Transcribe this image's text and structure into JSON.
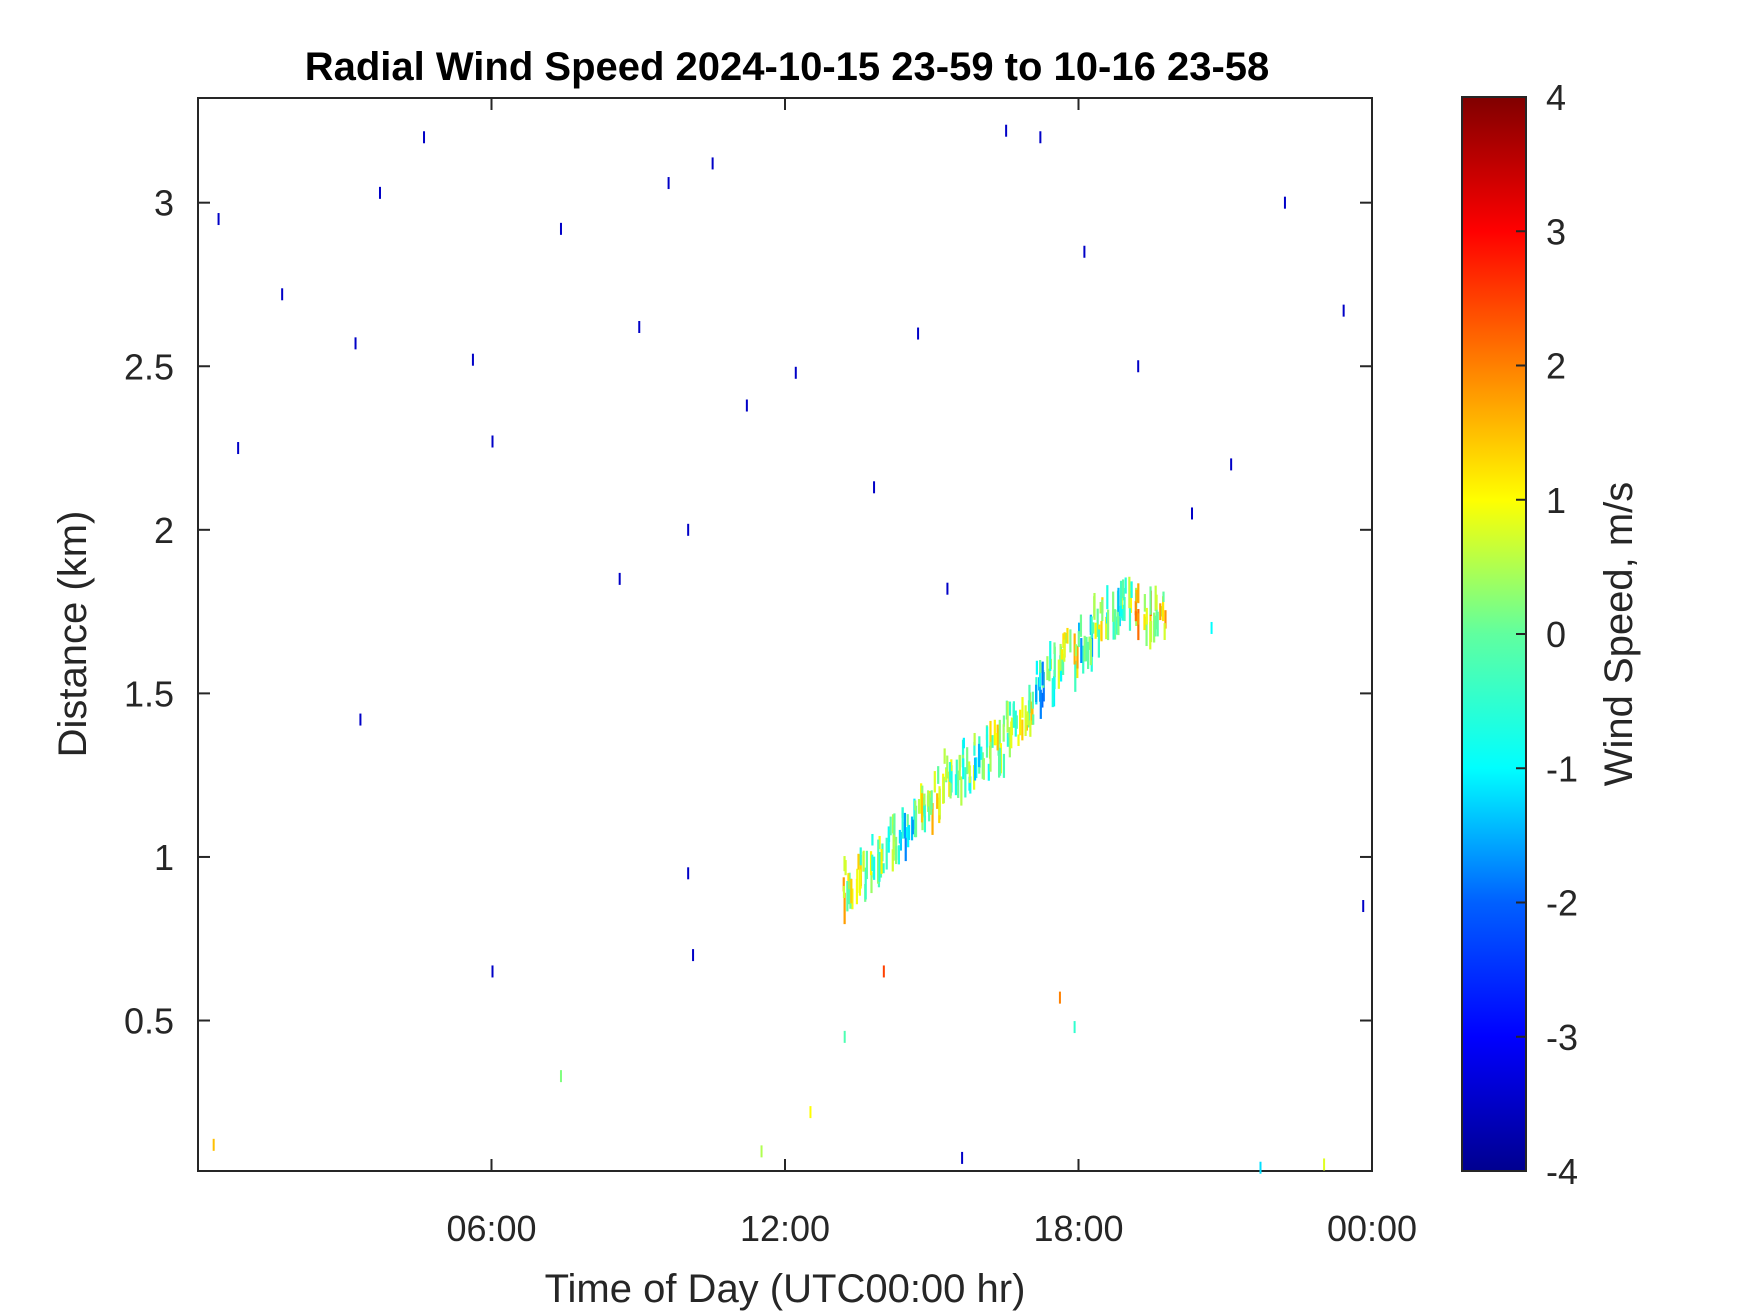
{
  "chart_data": {
    "type": "heatmap",
    "title": "Radial Wind Speed 2024-10-15 23-59 to 10-16 23-58",
    "xlabel": "Time of Day (UTC00:00 hr)",
    "ylabel": "Distance (km)",
    "x_unit": "hours of day (UTC)",
    "xlim": [
      0,
      24
    ],
    "ylim": [
      0.04,
      3.32
    ],
    "x_ticks": [
      6,
      12,
      18,
      24
    ],
    "x_tick_labels": [
      "06:00",
      "12:00",
      "18:00",
      "00:00"
    ],
    "y_ticks": [
      0.5,
      1,
      1.5,
      2,
      2.5,
      3
    ],
    "y_tick_labels": [
      "0.5",
      "1",
      "1.5",
      "2",
      "2.5",
      "3"
    ],
    "colorbar": {
      "label": "Wind Speed, m/s",
      "colormap": "jet",
      "clim": [
        -4,
        4
      ],
      "ticks": [
        -4,
        -3,
        -2,
        -1,
        0,
        1,
        2,
        3,
        4
      ],
      "tick_labels": [
        "-4",
        "-3",
        "-2",
        "-1",
        "0",
        "1",
        "2",
        "3",
        "4"
      ]
    },
    "grid": false,
    "band": {
      "description": "main cluster of returns",
      "points": [
        {
          "t": 13.3,
          "d": 0.92,
          "v": 0.8
        },
        {
          "t": 13.6,
          "d": 0.95,
          "v": 0.5
        },
        {
          "t": 13.9,
          "d": 1.0,
          "v": 0.2
        },
        {
          "t": 14.2,
          "d": 1.05,
          "v": -0.3
        },
        {
          "t": 14.5,
          "d": 1.1,
          "v": -0.8
        },
        {
          "t": 14.8,
          "d": 1.15,
          "v": 0.4
        },
        {
          "t": 15.1,
          "d": 1.2,
          "v": 0.9
        },
        {
          "t": 15.4,
          "d": 1.25,
          "v": 0.3
        },
        {
          "t": 15.7,
          "d": 1.28,
          "v": 0.0
        },
        {
          "t": 16.0,
          "d": 1.32,
          "v": -0.5
        },
        {
          "t": 16.3,
          "d": 1.35,
          "v": 0.6
        },
        {
          "t": 16.6,
          "d": 1.4,
          "v": 0.2
        },
        {
          "t": 16.9,
          "d": 1.45,
          "v": 0.8
        },
        {
          "t": 17.2,
          "d": 1.52,
          "v": -0.9
        },
        {
          "t": 17.5,
          "d": 1.58,
          "v": -0.2
        },
        {
          "t": 17.8,
          "d": 1.63,
          "v": 0.7
        },
        {
          "t": 18.1,
          "d": 1.68,
          "v": -0.6
        },
        {
          "t": 18.4,
          "d": 1.73,
          "v": 0.3
        },
        {
          "t": 18.7,
          "d": 1.77,
          "v": -0.4
        },
        {
          "t": 19.0,
          "d": 1.78,
          "v": 0.1
        },
        {
          "t": 19.3,
          "d": 1.76,
          "v": 1.2
        },
        {
          "t": 19.6,
          "d": 1.75,
          "v": 0.9
        }
      ]
    },
    "scatter": [
      {
        "t": 0.4,
        "d": 2.95,
        "v": -3.5
      },
      {
        "t": 0.8,
        "d": 2.25,
        "v": -3.5
      },
      {
        "t": 1.7,
        "d": 2.72,
        "v": -3.5
      },
      {
        "t": 3.2,
        "d": 2.57,
        "v": -3.5
      },
      {
        "t": 3.3,
        "d": 1.42,
        "v": -3.5
      },
      {
        "t": 3.7,
        "d": 3.03,
        "v": -3.5
      },
      {
        "t": 4.6,
        "d": 3.2,
        "v": -3.5
      },
      {
        "t": 5.6,
        "d": 2.52,
        "v": -3.5
      },
      {
        "t": 6.0,
        "d": 2.27,
        "v": -3.5
      },
      {
        "t": 6.0,
        "d": 0.65,
        "v": -3.5
      },
      {
        "t": 7.4,
        "d": 2.92,
        "v": -3.5
      },
      {
        "t": 8.6,
        "d": 1.85,
        "v": -3.5
      },
      {
        "t": 9.0,
        "d": 2.62,
        "v": -3.5
      },
      {
        "t": 9.6,
        "d": 3.06,
        "v": -3.5
      },
      {
        "t": 10.0,
        "d": 2.0,
        "v": -3.5
      },
      {
        "t": 10.5,
        "d": 3.12,
        "v": -3.5
      },
      {
        "t": 11.2,
        "d": 2.38,
        "v": -3.5
      },
      {
        "t": 12.2,
        "d": 2.48,
        "v": -3.5
      },
      {
        "t": 13.8,
        "d": 2.13,
        "v": -3.5
      },
      {
        "t": 14.7,
        "d": 2.6,
        "v": -3.5
      },
      {
        "t": 15.3,
        "d": 1.82,
        "v": -3.5
      },
      {
        "t": 16.5,
        "d": 3.22,
        "v": -3.5
      },
      {
        "t": 17.2,
        "d": 3.2,
        "v": -3.5
      },
      {
        "t": 18.1,
        "d": 2.85,
        "v": -3.5
      },
      {
        "t": 19.2,
        "d": 2.5,
        "v": -3.5
      },
      {
        "t": 20.3,
        "d": 2.05,
        "v": -3.5
      },
      {
        "t": 21.1,
        "d": 2.2,
        "v": -3.5
      },
      {
        "t": 22.2,
        "d": 3.0,
        "v": -3.5
      },
      {
        "t": 23.4,
        "d": 2.67,
        "v": -3.5
      },
      {
        "t": 23.8,
        "d": 0.85,
        "v": -3.5
      },
      {
        "t": 10.0,
        "d": 0.95,
        "v": -3.5
      },
      {
        "t": 10.1,
        "d": 0.7,
        "v": -3.5
      },
      {
        "t": 15.6,
        "d": 0.08,
        "v": -3.5
      },
      {
        "t": 14.0,
        "d": 0.65,
        "v": 2.5
      },
      {
        "t": 17.6,
        "d": 0.57,
        "v": 2.0
      },
      {
        "t": 20.7,
        "d": 1.7,
        "v": -1.0
      },
      {
        "t": 17.9,
        "d": 0.48,
        "v": -0.5
      },
      {
        "t": 7.4,
        "d": 0.33,
        "v": 0.2
      },
      {
        "t": 0.3,
        "d": 0.12,
        "v": 1.5
      },
      {
        "t": 11.5,
        "d": 0.1,
        "v": 0.5
      },
      {
        "t": 12.5,
        "d": 0.22,
        "v": 1.0
      },
      {
        "t": 13.2,
        "d": 0.45,
        "v": -0.2
      },
      {
        "t": 23.0,
        "d": 0.06,
        "v": 0.8
      },
      {
        "t": 21.7,
        "d": 0.05,
        "v": -1.2
      }
    ]
  }
}
